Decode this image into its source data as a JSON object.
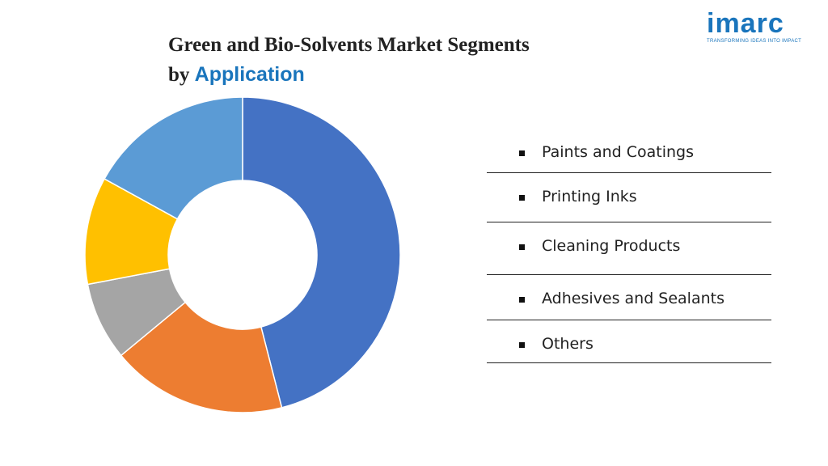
{
  "title": {
    "line1": "Green and Bio-Solvents Market Segments",
    "line2_prefix": "by",
    "line2_accent": "Application"
  },
  "logo": {
    "word": "imarc",
    "tagline": "TRANSFORMING IDEAS INTO IMPACT",
    "color": "#1a75bc"
  },
  "chart_data": {
    "type": "pie",
    "donut": true,
    "categories": [
      "Paints and Coatings",
      "Printing Inks",
      "Cleaning Products",
      "Adhesives and Sealants",
      "Others"
    ],
    "values": [
      46,
      18,
      8,
      11,
      17
    ],
    "colors": [
      "#4472c4",
      "#ed7d31",
      "#a5a5a5",
      "#ffc000",
      "#5b9bd5"
    ],
    "legend": "right",
    "title": "Green and Bio-Solvents Market Segments by Application"
  }
}
